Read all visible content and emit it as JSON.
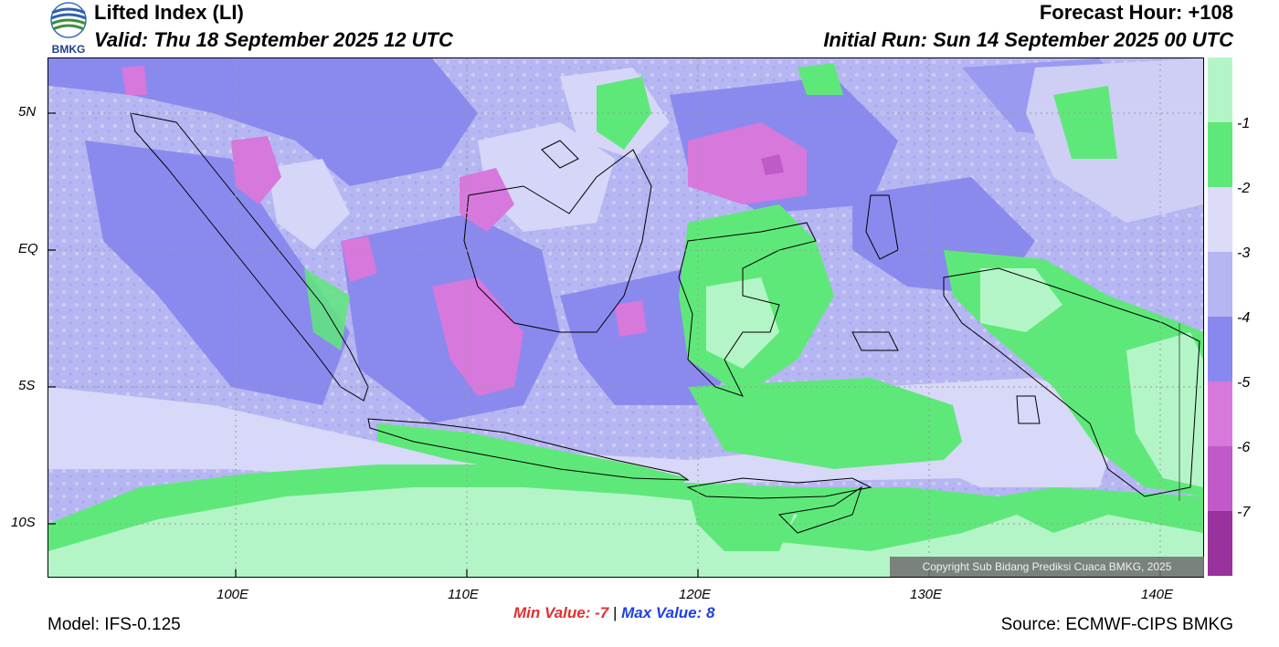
{
  "header": {
    "title": "Lifted Index (LI)",
    "valid": "Valid: Thu 18 September 2025 12 UTC",
    "forecast_hour": "Forecast Hour: +108",
    "initial_run": "Initial Run: Sun 14 September 2025 00 UTC",
    "logo_text": "BMKG"
  },
  "map": {
    "lat_labels": [
      "5N",
      "EQ",
      "5S",
      "10S"
    ],
    "lon_labels": [
      "100E",
      "110E",
      "120E",
      "130E",
      "140E"
    ],
    "copyright": "Copyright Sub Bidang Prediksi Cuaca BMKG, 2025"
  },
  "colorbar": {
    "labels": [
      "-1",
      "-2",
      "-3",
      "-4",
      "-5",
      "-6",
      "-7"
    ],
    "colors": [
      "#b4f5c8",
      "#5fe87a",
      "#dcdcf8",
      "#b6b6f2",
      "#8888ee",
      "#d778dc",
      "#c05ac8",
      "#98329c"
    ]
  },
  "stats": {
    "min_label": "Min Value:  -7",
    "separator": "|",
    "max_label": "Max Value:   8"
  },
  "footer": {
    "model": "Model: IFS-0.125",
    "source": "Source: ECMWF-CIPS BMKG"
  }
}
